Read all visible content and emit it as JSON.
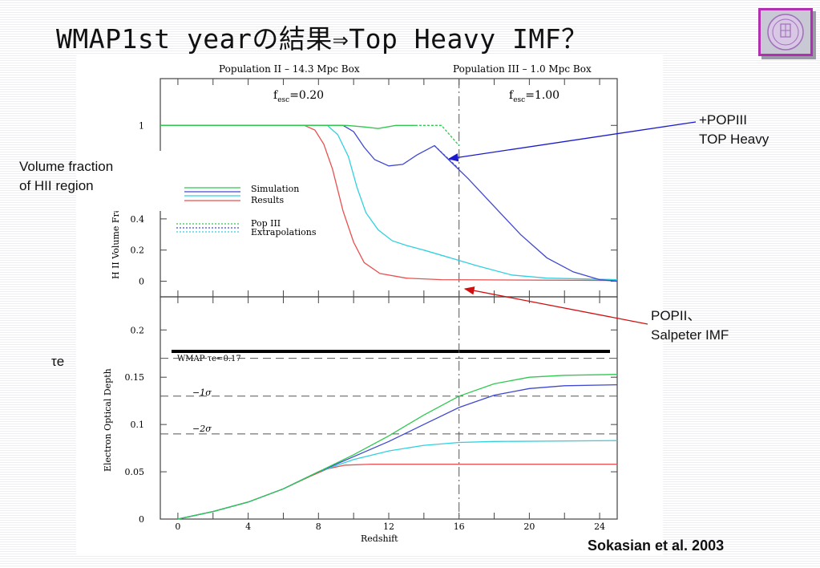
{
  "slide": {
    "title": "WMAP1st yearの結果⇒Top Heavy IMF？",
    "credit": "Sokasian et al. 2003"
  },
  "annotations": {
    "popiii_line1": "+POPIII",
    "popiii_line2": "TOP Heavy",
    "popii_line1": "POPII、",
    "popii_line2": "Salpeter IMF",
    "volume_line1": "Volume fraction",
    "volume_line2": "of HII region",
    "tau_label": "τe"
  },
  "chart_data": [
    {
      "type": "line",
      "header_left": "Population II – 14.3 Mpc Box",
      "header_right": "Population III – 1.0 Mpc Box",
      "fesc_left": "f",
      "fesc_left_sub": "esc",
      "fesc_left_val": "=0.20",
      "fesc_right": "f",
      "fesc_right_sub": "esc",
      "fesc_right_val": "=1.00",
      "ylabel": "H II Volume Fraction",
      "xlim": [
        -1,
        25
      ],
      "ylim": [
        -0.1,
        1.3
      ],
      "yticks": [
        "0",
        "0.2",
        "0.4",
        "1"
      ],
      "divider_x": 16,
      "legend": {
        "simulation": "Simulation",
        "results": "Results",
        "pop3": "Pop III",
        "extrap": "Extrapolations"
      },
      "series": [
        {
          "color": "#e85050",
          "points": [
            [
              -1,
              1
            ],
            [
              7.2,
              1
            ],
            [
              7.8,
              0.97
            ],
            [
              8.3,
              0.88
            ],
            [
              8.8,
              0.72
            ],
            [
              9.4,
              0.45
            ],
            [
              10,
              0.25
            ],
            [
              10.6,
              0.12
            ],
            [
              11.5,
              0.05
            ],
            [
              13,
              0.02
            ],
            [
              15,
              0.01
            ],
            [
              25,
              0.005
            ]
          ]
        },
        {
          "color": "#30d0e0",
          "points": [
            [
              -1,
              1
            ],
            [
              8.5,
              1
            ],
            [
              9.1,
              0.94
            ],
            [
              9.7,
              0.8
            ],
            [
              10.2,
              0.6
            ],
            [
              10.7,
              0.44
            ],
            [
              11.4,
              0.33
            ],
            [
              12.2,
              0.26
            ],
            [
              13,
              0.23
            ],
            [
              14,
              0.2
            ],
            [
              15.5,
              0.15
            ],
            [
              17,
              0.1
            ],
            [
              19,
              0.04
            ],
            [
              21,
              0.02
            ],
            [
              25,
              0.01
            ]
          ]
        },
        {
          "color": "#4048d0",
          "points": [
            [
              -1,
              1
            ],
            [
              9.4,
              1
            ],
            [
              10,
              0.96
            ],
            [
              10.6,
              0.86
            ],
            [
              11.2,
              0.78
            ],
            [
              12,
              0.74
            ],
            [
              12.8,
              0.75
            ],
            [
              13.6,
              0.81
            ],
            [
              14.6,
              0.87
            ],
            [
              15.5,
              0.77
            ],
            [
              16.5,
              0.66
            ],
            [
              18,
              0.48
            ],
            [
              19.5,
              0.3
            ],
            [
              21,
              0.15
            ],
            [
              22.5,
              0.06
            ],
            [
              24,
              0.01
            ],
            [
              25,
              0
            ]
          ]
        },
        {
          "color": "#30c850",
          "points": [
            [
              -1,
              1
            ],
            [
              9.6,
              1
            ],
            [
              10.6,
              0.99
            ],
            [
              11.4,
              0.98
            ],
            [
              12.4,
              1
            ],
            [
              13.5,
              1
            ]
          ]
        },
        {
          "color": "#30c850",
          "dashed": true,
          "points": [
            [
              13.5,
              1
            ],
            [
              15,
              1
            ],
            [
              16,
              0.87
            ]
          ]
        },
        {
          "color": "#4048d0",
          "dashed": true,
          "points": [
            [
              14.6,
              0.87
            ],
            [
              16,
              0.72
            ]
          ]
        },
        {
          "color": "#30d0e0",
          "dashed": true,
          "points": [
            [
              14,
              0.2
            ],
            [
              15.5,
              0.15
            ]
          ]
        }
      ]
    },
    {
      "type": "line",
      "xlabel": "Redshift",
      "ylabel": "Electron Optical Depth",
      "xlim": [
        -1,
        25
      ],
      "ylim": [
        0,
        0.235
      ],
      "xticks": [
        "0",
        "4",
        "8",
        "12",
        "16",
        "20",
        "24"
      ],
      "yticks": [
        "0",
        "0.05",
        "0.1",
        "0.15",
        "0.2"
      ],
      "wmap_label": "WMAP τe=0.17",
      "sigma1_label": "−1σ",
      "sigma2_label": "−2σ",
      "hlines": [
        0.17,
        0.13,
        0.09
      ],
      "series": [
        {
          "color": "#e85050",
          "points": [
            [
              0,
              0
            ],
            [
              2,
              0.008
            ],
            [
              4,
              0.018
            ],
            [
              6,
              0.032
            ],
            [
              7.5,
              0.045
            ],
            [
              8.5,
              0.053
            ],
            [
              9.5,
              0.057
            ],
            [
              11,
              0.058
            ],
            [
              25,
              0.058
            ]
          ]
        },
        {
          "color": "#30d0e0",
          "points": [
            [
              0,
              0
            ],
            [
              2,
              0.008
            ],
            [
              4,
              0.018
            ],
            [
              6,
              0.032
            ],
            [
              8,
              0.05
            ],
            [
              10,
              0.063
            ],
            [
              12,
              0.072
            ],
            [
              14,
              0.078
            ],
            [
              16,
              0.081
            ],
            [
              18,
              0.082
            ],
            [
              25,
              0.083
            ]
          ]
        },
        {
          "color": "#4048d0",
          "points": [
            [
              0,
              0
            ],
            [
              2,
              0.008
            ],
            [
              4,
              0.018
            ],
            [
              6,
              0.032
            ],
            [
              8,
              0.05
            ],
            [
              10,
              0.066
            ],
            [
              12,
              0.082
            ],
            [
              14,
              0.1
            ],
            [
              16,
              0.118
            ],
            [
              18,
              0.131
            ],
            [
              20,
              0.138
            ],
            [
              22,
              0.141
            ],
            [
              25,
              0.142
            ]
          ]
        },
        {
          "color": "#30c850",
          "points": [
            [
              0,
              0
            ],
            [
              2,
              0.008
            ],
            [
              4,
              0.018
            ],
            [
              6,
              0.032
            ],
            [
              8,
              0.05
            ],
            [
              10,
              0.068
            ],
            [
              12,
              0.088
            ],
            [
              14,
              0.11
            ],
            [
              16,
              0.13
            ],
            [
              18,
              0.143
            ],
            [
              20,
              0.15
            ],
            [
              22,
              0.152
            ],
            [
              25,
              0.153
            ]
          ]
        }
      ]
    }
  ]
}
